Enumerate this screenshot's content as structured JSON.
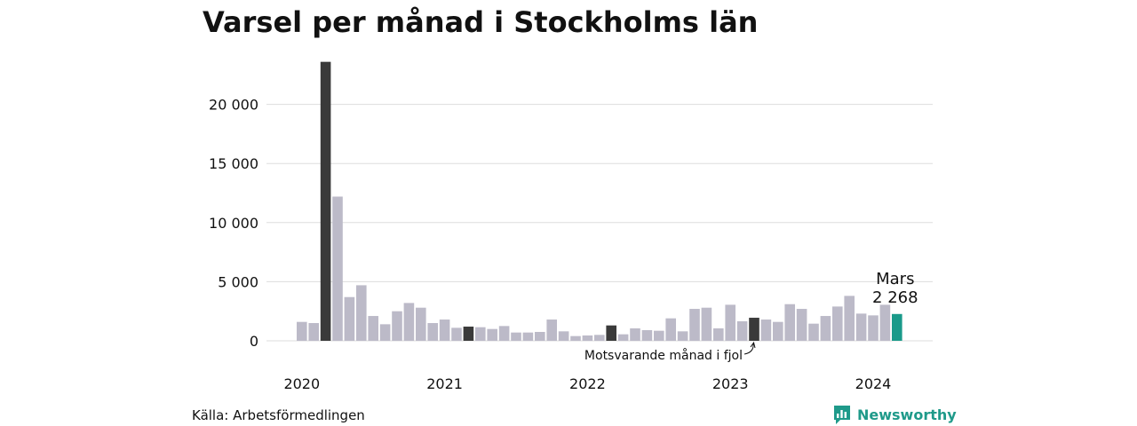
{
  "title": "Varsel per månad i Stockholms län",
  "source": "Källa: Arbetsförmedlingen",
  "brand": {
    "name": "Newsworthy",
    "icon": "newsworthy-logo-icon"
  },
  "colors": {
    "default": "#bcbac8",
    "highlight": "#3a3a3a",
    "current": "#1a9a8a",
    "grid": "#dddddd"
  },
  "chart_data": {
    "type": "bar",
    "title": "Varsel per månad i Stockholms län",
    "ylim": [
      0,
      23500
    ],
    "y_ticks": [
      0,
      5000,
      10000,
      15000,
      20000
    ],
    "y_tick_labels": [
      "0",
      "5 000",
      "10 000",
      "15 000",
      "20 000"
    ],
    "x_tick_labels": [
      "2020",
      "2021",
      "2022",
      "2023",
      "2024"
    ],
    "grid": true,
    "categories": [
      "2020-01",
      "2020-02",
      "2020-03",
      "2020-04",
      "2020-05",
      "2020-06",
      "2020-07",
      "2020-08",
      "2020-09",
      "2020-10",
      "2020-11",
      "2020-12",
      "2021-01",
      "2021-02",
      "2021-03",
      "2021-04",
      "2021-05",
      "2021-06",
      "2021-07",
      "2021-08",
      "2021-09",
      "2021-10",
      "2021-11",
      "2021-12",
      "2022-01",
      "2022-02",
      "2022-03",
      "2022-04",
      "2022-05",
      "2022-06",
      "2022-07",
      "2022-08",
      "2022-09",
      "2022-10",
      "2022-11",
      "2022-12",
      "2023-01",
      "2023-02",
      "2023-03",
      "2023-04",
      "2023-05",
      "2023-06",
      "2023-07",
      "2023-08",
      "2023-09",
      "2023-10",
      "2023-11",
      "2023-12",
      "2024-01",
      "2024-02",
      "2024-03"
    ],
    "values": [
      1600,
      1500,
      23600,
      12200,
      3700,
      4700,
      2100,
      1400,
      2500,
      3200,
      2800,
      1500,
      1800,
      1100,
      1200,
      1150,
      1000,
      1250,
      700,
      700,
      750,
      1800,
      800,
      400,
      450,
      500,
      1300,
      550,
      1050,
      900,
      850,
      1900,
      800,
      2700,
      2800,
      1050,
      3050,
      1650,
      1950,
      1800,
      1600,
      3100,
      2700,
      1450,
      2100,
      2900,
      3800,
      2300,
      2150,
      3050,
      2268
    ],
    "highlight": [
      "2020-03",
      "2021-03",
      "2022-03",
      "2023-03"
    ],
    "current": "2024-03",
    "annotations": {
      "current_month": "Mars",
      "current_value": "2 268",
      "previous_year": "Motsvarande månad i fjol"
    }
  }
}
